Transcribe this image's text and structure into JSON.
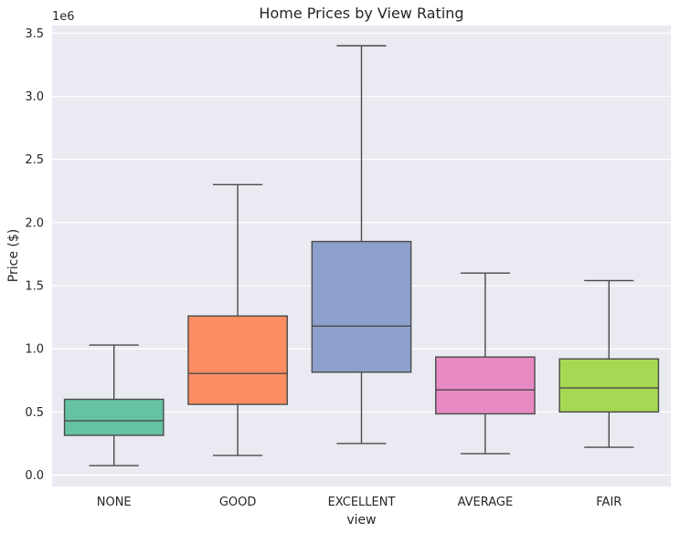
{
  "chart_data": {
    "type": "box",
    "title": "Home Prices by View Rating",
    "xlabel": "view",
    "ylabel": "Price ($)",
    "y_offset_label": "1e6",
    "y_multiplier": 1000000,
    "ylim": [
      -0.09,
      3.56
    ],
    "yticks": [
      0.0,
      0.5,
      1.0,
      1.5,
      2.0,
      2.5,
      3.0,
      3.5
    ],
    "ytick_labels": [
      "0.0",
      "0.5",
      "1.0",
      "1.5",
      "2.0",
      "2.5",
      "3.0",
      "3.5"
    ],
    "grid": true,
    "categories": [
      "NONE",
      "GOOD",
      "EXCELLENT",
      "AVERAGE",
      "FAIR"
    ],
    "boxes": [
      {
        "category": "NONE",
        "whisker_low": 0.075,
        "q1": 0.315,
        "median": 0.43,
        "q3": 0.6,
        "whisker_high": 1.03,
        "color": "#66c2a5"
      },
      {
        "category": "GOOD",
        "whisker_low": 0.155,
        "q1": 0.56,
        "median": 0.805,
        "q3": 1.26,
        "whisker_high": 2.3,
        "color": "#fc8d62"
      },
      {
        "category": "EXCELLENT",
        "whisker_low": 0.25,
        "q1": 0.815,
        "median": 1.18,
        "q3": 1.85,
        "whisker_high": 3.4,
        "color": "#8da0cb"
      },
      {
        "category": "AVERAGE",
        "whisker_low": 0.17,
        "q1": 0.485,
        "median": 0.675,
        "q3": 0.935,
        "whisker_high": 1.6,
        "color": "#e78ac3"
      },
      {
        "category": "FAIR",
        "whisker_low": 0.22,
        "q1": 0.5,
        "median": 0.69,
        "q3": 0.92,
        "whisker_high": 1.54,
        "color": "#a6d854"
      }
    ]
  }
}
